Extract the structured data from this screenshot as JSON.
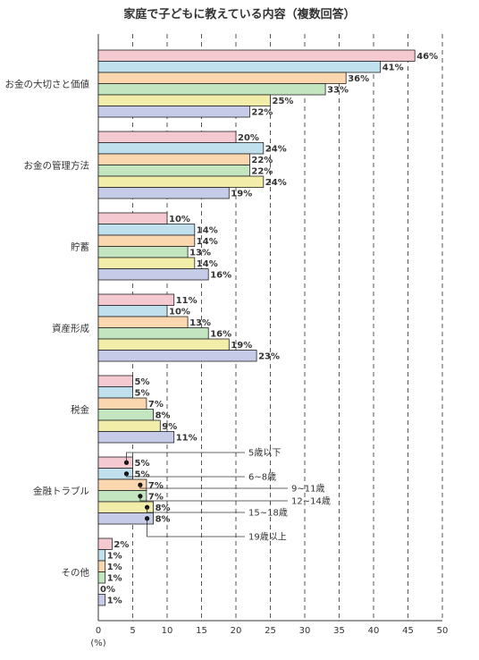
{
  "chart_data": {
    "type": "bar",
    "orientation": "horizontal",
    "title": "家庭で子どもに教えている内容（複数回答）",
    "categories": [
      "お金の大切さと価値",
      "お金の管理方法",
      "貯蓄",
      "資産形成",
      "税金",
      "金融トラブル",
      "その他"
    ],
    "series": [
      {
        "name": "5歳以下",
        "color": "#f4c9d0",
        "values": [
          46,
          20,
          10,
          11,
          5,
          5,
          2
        ]
      },
      {
        "name": "6~8歳",
        "color": "#bfe0ec",
        "values": [
          41,
          24,
          14,
          10,
          5,
          5,
          1
        ]
      },
      {
        "name": "9~11歳",
        "color": "#fbd7b0",
        "values": [
          36,
          22,
          14,
          13,
          7,
          7,
          1
        ]
      },
      {
        "name": "12~14歳",
        "color": "#c3e6c0",
        "values": [
          33,
          22,
          13,
          16,
          8,
          7,
          1
        ]
      },
      {
        "name": "15~18歳",
        "color": "#f2eeaa",
        "values": [
          25,
          24,
          14,
          19,
          9,
          8,
          0
        ]
      },
      {
        "name": "19歳以上",
        "color": "#c6cbe8",
        "values": [
          22,
          19,
          16,
          23,
          11,
          8,
          1
        ]
      }
    ],
    "value_suffix": "%",
    "xaxis_unit": "(%)",
    "xlim": [
      0,
      50
    ],
    "xticks": [
      0,
      5,
      10,
      15,
      20,
      25,
      30,
      35,
      40,
      45,
      50
    ],
    "grid": "vertical dashed",
    "legend": "callouts on 金融トラブル group"
  }
}
